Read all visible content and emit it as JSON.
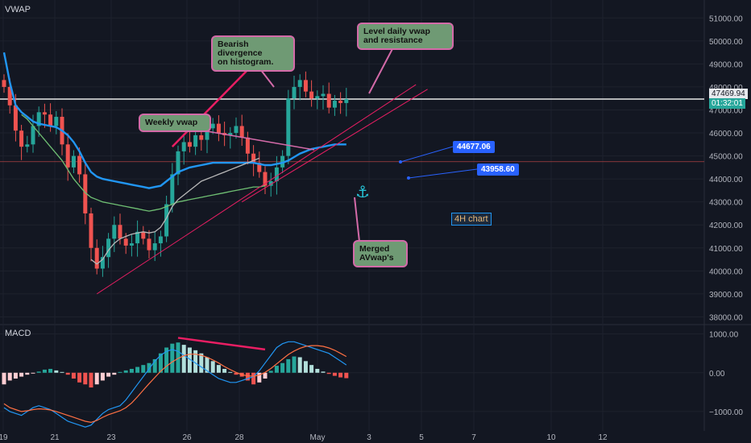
{
  "indicator_labels": {
    "main": "VWAP",
    "lower": "MACD"
  },
  "annotations": {
    "bearish": "Bearish\ndivergence\non histogram.",
    "level": "Level daily vwap\nand resistance",
    "weekly": "Weekly vwap",
    "merged": "Merged\nAVwap's",
    "timeframe": "4H chart",
    "tag1": "44677.06",
    "tag2": "43958.60"
  },
  "price_tags": {
    "last_price": "47469.94",
    "countdown": "01:32:01"
  },
  "icons": {
    "anchor": "anchor-icon"
  },
  "colors": {
    "background": "#131722",
    "up": "#26a69a",
    "down": "#ef5350",
    "vwap_line": "#2196f3",
    "note_fill": "#6f9a74",
    "note_border": "#d36aa8",
    "trendline": "#e91e63"
  },
  "chart_data": [
    {
      "type": "candlestick",
      "title": "",
      "xlabel": "",
      "ylabel": "",
      "ylim": [
        37700,
        51500
      ],
      "grid": true,
      "x_ticks": [
        "19",
        "21",
        "23",
        "26",
        "28",
        "May",
        "3",
        "5",
        "7",
        "10",
        "12"
      ],
      "y_ticks": [
        "51000.00",
        "50000.00",
        "49000.00",
        "48000.00",
        "47000.00",
        "46000.00",
        "45000.00",
        "44000.00",
        "43000.00",
        "42000.00",
        "41000.00",
        "40000.00",
        "39000.00",
        "38000.00"
      ],
      "horizontal_levels": [
        47470,
        44750
      ],
      "closes": [
        48000,
        47200,
        46100,
        45400,
        45500,
        46300,
        46900,
        46800,
        46300,
        46700,
        45500,
        44500,
        45000,
        44200,
        42500,
        41000,
        40100,
        40600,
        41400,
        42000,
        41400,
        41100,
        41200,
        41700,
        41400,
        40900,
        41200,
        41500,
        42900,
        44200,
        45200,
        45600,
        45400,
        45900,
        45700,
        46200,
        46400,
        46000,
        45900,
        46000,
        46300,
        45800,
        45100,
        44700,
        44300,
        43700,
        43900,
        44500,
        45000,
        47500,
        48000,
        48300,
        47800,
        47500,
        47600,
        47700,
        47100,
        47400,
        47300,
        47470
      ],
      "series": [
        {
          "name": "",
          "type": "line",
          "color": "#2196f3",
          "values": [
            49500,
            48200,
            47200,
            46900,
            46700,
            46500,
            46400,
            46350,
            46300,
            46250,
            46100,
            45900,
            45600,
            45200,
            44700,
            44300,
            44100,
            44000,
            43950,
            43900,
            43850,
            43800,
            43750,
            43700,
            43650,
            43600,
            43650,
            43700,
            43900,
            44100,
            44300,
            44400,
            44500,
            44550,
            44600,
            44650,
            44700,
            44700,
            44700,
            44700,
            44700,
            44700,
            44700,
            44700,
            44650,
            44600,
            44600,
            44650,
            44700,
            44800,
            44950,
            45100,
            45200,
            45300,
            45350,
            45400,
            45450,
            45500,
            45500,
            45500
          ]
        },
        {
          "name": "",
          "type": "line",
          "color": "#6fbf73",
          "values": [
            null,
            null,
            null,
            46800,
            46600,
            46300,
            46000,
            45700,
            45400,
            45100,
            44800,
            44400,
            44000,
            43700,
            43400,
            43200,
            43100,
            43000,
            42950,
            42900,
            42850,
            42800,
            42750,
            42700,
            42650,
            42600,
            42650,
            42700,
            42800,
            42900,
            43000,
            43050,
            43100,
            43150,
            43200,
            43250,
            43300,
            43350,
            43400,
            43450,
            43500,
            43550,
            43600,
            43650,
            43650,
            43700,
            null,
            null,
            null,
            null,
            null,
            null,
            null,
            null,
            null,
            null,
            null,
            null,
            null,
            null
          ]
        },
        {
          "name": "",
          "type": "line",
          "color": "#b9b9b9",
          "values": [
            null,
            null,
            null,
            null,
            null,
            null,
            null,
            null,
            null,
            null,
            null,
            null,
            null,
            null,
            null,
            40500,
            40300,
            40500,
            40900,
            41200,
            41400,
            41500,
            41600,
            41650,
            41700,
            41650,
            41700,
            41900,
            42300,
            42800,
            43100,
            43300,
            43500,
            43700,
            43900,
            44000,
            44100,
            44200,
            44300,
            44400,
            44500,
            44600,
            44700,
            44800,
            44900,
            null,
            null,
            null,
            null,
            null,
            null,
            null,
            null,
            null,
            null,
            null,
            null,
            null,
            null,
            null
          ]
        }
      ],
      "trendlines": [
        {
          "x0": 16,
          "y0": 39000,
          "x1": 71,
          "y1": 48100,
          "color": "#e91e63"
        },
        {
          "x0": 41,
          "y0": 43000,
          "x1": 73,
          "y1": 47900,
          "color": "#e91e63"
        },
        {
          "x0": 29,
          "y0": 45400,
          "x1": 43,
          "y1": 49000,
          "color": "#e91e63"
        }
      ]
    },
    {
      "type": "bar",
      "title": "",
      "xlabel": "",
      "ylabel": "",
      "ylim": [
        -1500,
        1200
      ],
      "y_ticks": [
        "1000.00",
        "0.00",
        "−1000.00"
      ],
      "histogram": [
        -300,
        -200,
        -150,
        -100,
        -50,
        -20,
        30,
        80,
        100,
        60,
        20,
        -50,
        -150,
        -250,
        -300,
        -380,
        -300,
        -200,
        -100,
        -50,
        20,
        60,
        100,
        150,
        200,
        250,
        350,
        500,
        650,
        750,
        780,
        720,
        650,
        580,
        500,
        400,
        300,
        200,
        100,
        20,
        -50,
        -100,
        -200,
        -300,
        -250,
        -150,
        50,
        180,
        250,
        350,
        420,
        400,
        300,
        200,
        100,
        30,
        -30,
        -80,
        -120,
        -140
      ],
      "series": [
        {
          "name": "",
          "type": "line",
          "color": "#2196f3",
          "values": [
            -900,
            -1000,
            -1050,
            -1100,
            -1000,
            -900,
            -850,
            -900,
            -950,
            -1050,
            -1150,
            -1250,
            -1300,
            -1350,
            -1400,
            -1350,
            -1200,
            -1050,
            -950,
            -900,
            -850,
            -700,
            -500,
            -300,
            -100,
            100,
            300,
            450,
            550,
            600,
            550,
            450,
            350,
            250,
            150,
            50,
            -50,
            -150,
            -200,
            -250,
            -250,
            -200,
            -150,
            -100,
            50,
            250,
            450,
            650,
            750,
            800,
            800,
            750,
            700,
            650,
            600,
            550,
            500,
            400,
            300,
            200
          ]
        },
        {
          "name": "",
          "type": "line",
          "color": "#ff7043",
          "values": [
            -800,
            -900,
            -950,
            -1000,
            -980,
            -950,
            -930,
            -940,
            -960,
            -1000,
            -1050,
            -1100,
            -1150,
            -1200,
            -1250,
            -1280,
            -1230,
            -1150,
            -1080,
            -1030,
            -980,
            -900,
            -780,
            -620,
            -450,
            -280,
            -120,
            40,
            170,
            280,
            370,
            440,
            480,
            480,
            450,
            400,
            330,
            250,
            160,
            80,
            10,
            -50,
            -80,
            -90,
            -60,
            10,
            110,
            230,
            350,
            470,
            560,
            630,
            680,
            700,
            700,
            680,
            640,
            580,
            500,
            420
          ]
        }
      ],
      "trendlines": [
        {
          "x0": 30,
          "y0": 900,
          "x1": 45,
          "y1": 600,
          "color": "#e91e63"
        }
      ]
    }
  ]
}
